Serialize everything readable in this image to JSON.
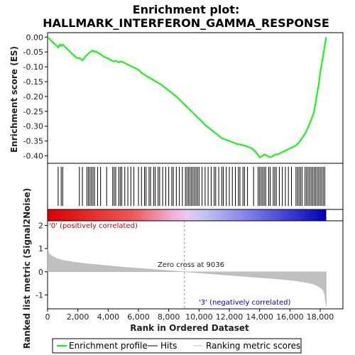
{
  "chart_data": {
    "type": "line",
    "title_line1": "Enrichment plot:",
    "title_line2": "HALLMARK_INTERFERON_GAMMA_RESPONSE",
    "es_panel": {
      "ylabel": "Enrichment score (ES)",
      "ylim": [
        -0.425,
        0.015
      ],
      "y_ticks": [
        0.0,
        -0.05,
        -0.1,
        -0.15,
        -0.2,
        -0.25,
        -0.3,
        -0.35,
        -0.4
      ],
      "y_tick_labels": [
        "0.00",
        "-0.05",
        "-0.10",
        "-0.15",
        "-0.20",
        "-0.25",
        "-0.30",
        "-0.35",
        "-0.40"
      ],
      "line_color": "#00ff00",
      "series": [
        {
          "x": [
            0,
            200,
            400,
            600,
            700,
            800,
            900,
            1000,
            1100,
            1200,
            1400,
            1600,
            1800,
            2000,
            2100,
            2200,
            2300,
            2400,
            2500,
            2600,
            2700,
            2800,
            2900,
            3000,
            3100,
            3200,
            3300,
            3400,
            3500,
            3600,
            3800,
            4000,
            4200,
            4400,
            4500,
            4600,
            4700,
            4800,
            4900,
            5000,
            5200,
            5400,
            5600,
            5800,
            6000,
            6200,
            6500,
            7000,
            7500,
            8000,
            8500,
            9000,
            9500,
            10000,
            10500,
            11000,
            11500,
            12000,
            12500,
            13000,
            13500,
            13800,
            14000,
            14200,
            14300,
            14500,
            14700,
            14900,
            15000,
            15200,
            15400,
            15600,
            15800,
            16000,
            16200,
            16400,
            16600,
            16800,
            17000,
            17200,
            17400,
            17600,
            17700,
            17800,
            17900,
            18000,
            18100,
            18200,
            18300,
            18400
          ],
          "y": [
            0.0,
            -0.01,
            -0.02,
            -0.03,
            -0.035,
            -0.025,
            -0.03,
            -0.025,
            -0.03,
            -0.035,
            -0.045,
            -0.055,
            -0.065,
            -0.072,
            -0.07,
            -0.075,
            -0.078,
            -0.072,
            -0.065,
            -0.06,
            -0.055,
            -0.05,
            -0.048,
            -0.045,
            -0.05,
            -0.048,
            -0.052,
            -0.055,
            -0.058,
            -0.062,
            -0.068,
            -0.072,
            -0.078,
            -0.082,
            -0.08,
            -0.082,
            -0.085,
            -0.082,
            -0.083,
            -0.085,
            -0.09,
            -0.095,
            -0.1,
            -0.105,
            -0.11,
            -0.12,
            -0.13,
            -0.145,
            -0.16,
            -0.18,
            -0.2,
            -0.225,
            -0.25,
            -0.275,
            -0.3,
            -0.32,
            -0.34,
            -0.35,
            -0.36,
            -0.365,
            -0.375,
            -0.39,
            -0.405,
            -0.4,
            -0.395,
            -0.4,
            -0.405,
            -0.4,
            -0.395,
            -0.395,
            -0.39,
            -0.385,
            -0.38,
            -0.375,
            -0.37,
            -0.365,
            -0.355,
            -0.34,
            -0.325,
            -0.305,
            -0.28,
            -0.25,
            -0.22,
            -0.19,
            -0.16,
            -0.12,
            -0.09,
            -0.06,
            -0.03,
            0.0
          ]
        }
      ]
    },
    "hits_x": [
      700,
      900,
      1000,
      2100,
      2300,
      2600,
      2700,
      2800,
      2900,
      3000,
      3100,
      3300,
      3500,
      3900,
      4300,
      4400,
      4500,
      4700,
      4800,
      4900,
      5100,
      5300,
      5500,
      5700,
      6000,
      6200,
      6400,
      6500,
      6700,
      6800,
      7000,
      7100,
      7300,
      7400,
      7600,
      7800,
      8000,
      8200,
      8300,
      8500,
      8700,
      8900,
      9100,
      9200,
      9300,
      9400,
      9500,
      9600,
      9700,
      9800,
      9900,
      10000,
      10200,
      10400,
      10600,
      10800,
      11000,
      11100,
      11300,
      11500,
      11600,
      11800,
      12000,
      12200,
      12400,
      12600,
      12700,
      12900,
      13000,
      13200,
      13600,
      13900,
      14000,
      14100,
      14200,
      14300,
      14400,
      14600,
      14700,
      14900,
      15000,
      15100,
      15300,
      15500,
      15700,
      15900,
      16100,
      16400,
      16500,
      16600,
      16700,
      16800,
      17000,
      17100,
      17200,
      17300,
      17400,
      17500,
      17600,
      17700,
      17800,
      17900,
      18000,
      18100,
      18200,
      18300
    ],
    "ranked_panel": {
      "ylabel": "Ranked list metric (Signal2Noise)",
      "ylim": [
        -1.6,
        2.2
      ],
      "y_ticks": [
        2,
        1,
        0,
        -1
      ],
      "y_tick_labels": [
        "2",
        "1",
        "0",
        "-1"
      ],
      "label_positive": "'0' (positively correlated)",
      "label_negative": "'3' (negatively correlated)",
      "zero_cross_label": "Zero cross at 9036",
      "zero_cross": 9036,
      "x": [
        0,
        100,
        300,
        600,
        1000,
        1500,
        2000,
        3000,
        4000,
        5000,
        6000,
        7000,
        8000,
        9036,
        10000,
        11000,
        12000,
        13000,
        14000,
        15000,
        16000,
        16500,
        17000,
        17500,
        17800,
        18000,
        18200,
        18300,
        18400
      ],
      "y": [
        1.0,
        0.8,
        0.68,
        0.58,
        0.5,
        0.44,
        0.39,
        0.32,
        0.26,
        0.2,
        0.15,
        0.1,
        0.05,
        0.0,
        -0.05,
        -0.1,
        -0.15,
        -0.2,
        -0.25,
        -0.3,
        -0.36,
        -0.4,
        -0.45,
        -0.52,
        -0.6,
        -0.68,
        -0.8,
        -1.0,
        -1.5
      ]
    },
    "xlabel": "Rank in Ordered Dataset",
    "xlim": [
      0,
      19500
    ],
    "x_ticks": [
      0,
      2000,
      4000,
      6000,
      8000,
      10000,
      12000,
      14000,
      16000,
      18000
    ],
    "x_tick_labels": [
      "0",
      "2,000",
      "4,000",
      "6,000",
      "8,000",
      "10,000",
      "12,000",
      "14,000",
      "16,000",
      "18,000"
    ],
    "dataset_size": 18400,
    "colors": {
      "es_line": "#00ff00",
      "positive": "#dd0000",
      "negative": "#0000cc",
      "metric_fill": "#c0c0c0",
      "zero_line": "#999999"
    },
    "legend": {
      "position": "bottom",
      "entries": [
        "Enrichment profile",
        "Hits",
        "Ranking metric scores"
      ]
    }
  }
}
